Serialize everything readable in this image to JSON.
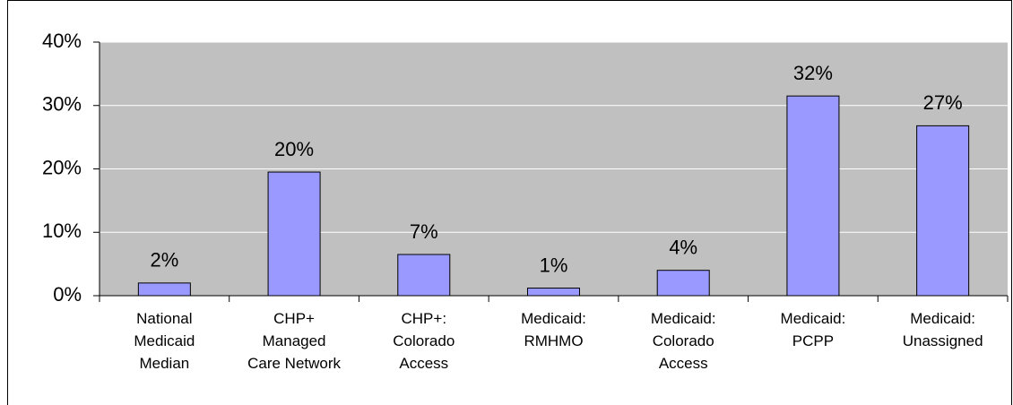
{
  "chart_data": {
    "type": "bar",
    "categories": [
      [
        "National",
        "Medicaid",
        "Median"
      ],
      [
        "CHP+",
        "Managed",
        "Care Network"
      ],
      [
        "CHP+:",
        "Colorado",
        "Access"
      ],
      [
        "Medicaid:",
        "RMHMO"
      ],
      [
        "Medicaid:",
        "Colorado",
        "Access"
      ],
      [
        "Medicaid:",
        "PCPP"
      ],
      [
        "Medicaid:",
        "Unassigned"
      ]
    ],
    "values": [
      2,
      19.5,
      6.5,
      1.2,
      4,
      31.5,
      26.8
    ],
    "value_labels": [
      "2%",
      "20%",
      "7%",
      "1%",
      "4%",
      "32%",
      "27%"
    ],
    "color": "#9999ff",
    "ylim": [
      0,
      40
    ],
    "yticks": [
      {
        "value": 0,
        "label": "0%"
      },
      {
        "value": 10,
        "label": "10%"
      },
      {
        "value": 20,
        "label": "20%"
      },
      {
        "value": 30,
        "label": "30%"
      },
      {
        "value": 40,
        "label": "40%"
      }
    ],
    "grid": true
  }
}
